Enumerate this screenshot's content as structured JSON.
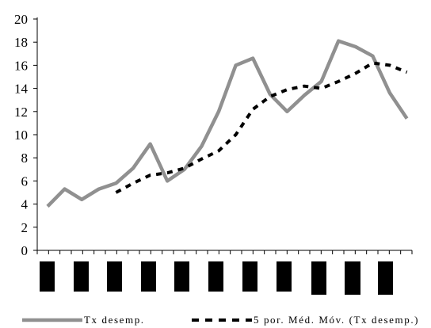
{
  "chart_data": {
    "type": "line",
    "title": "",
    "xlabel": "",
    "ylabel": "",
    "ylim": [
      0,
      20
    ],
    "yticks": [
      0,
      2,
      4,
      6,
      8,
      10,
      12,
      14,
      16,
      18,
      20
    ],
    "x_points": 33,
    "x_tick_labels_redacted": true,
    "grid": false,
    "legend_position": "bottom",
    "series": [
      {
        "name": "Tx desemp.",
        "color": "#909090",
        "style": "solid",
        "values": [
          3.8,
          5.3,
          4.4,
          5.3,
          5.8,
          7.1,
          9.2,
          6.0,
          7.0,
          9.0,
          12.0,
          16.0,
          16.6,
          13.5,
          12.0,
          13.4,
          14.6,
          18.1,
          17.6,
          16.8,
          13.6,
          11.4
        ]
      },
      {
        "name": "5 por. Méd. Móv. (Tx desemp.)",
        "color": "#000000",
        "style": "dashed",
        "values": [
          null,
          null,
          null,
          null,
          5.0,
          5.8,
          6.5,
          6.7,
          7.1,
          7.9,
          8.6,
          10.0,
          12.2,
          13.3,
          13.9,
          14.2,
          14.0,
          14.6,
          15.3,
          16.2,
          16.0,
          15.4
        ]
      }
    ],
    "legend_entries": [
      "Tx desemp.",
      "5 por. Méd. Móv. (Tx desemp.)"
    ]
  }
}
